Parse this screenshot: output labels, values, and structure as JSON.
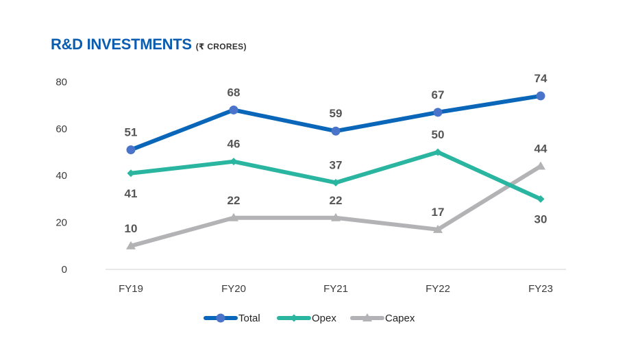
{
  "title": "R&D INVESTMENTS",
  "subtitle": "(₹ CRORES)",
  "chart_data": {
    "type": "line",
    "categories": [
      "FY19",
      "FY20",
      "FY21",
      "FY22",
      "FY23"
    ],
    "ylim": [
      0,
      80
    ],
    "yticks": [
      0,
      20,
      40,
      60,
      80
    ],
    "grid": false,
    "legend_position": "bottom",
    "series": [
      {
        "name": "Total",
        "values": [
          51,
          68,
          59,
          67,
          74
        ],
        "color": "#0a66b8",
        "marker": "circle",
        "labels": [
          "51",
          "68",
          "59",
          "67",
          "74"
        ],
        "label_side": "above"
      },
      {
        "name": "Opex",
        "values": [
          41,
          46,
          37,
          50,
          30
        ],
        "color": "#2ab5a0",
        "marker": "diamond",
        "labels": [
          "41",
          "46",
          "37",
          "50",
          "30"
        ],
        "label_side": "mixed"
      },
      {
        "name": "Capex",
        "values": [
          10,
          22,
          22,
          17,
          44
        ],
        "color": "#b3b3b6",
        "marker": "triangle",
        "labels": [
          "10",
          "22",
          "22",
          "17",
          "44"
        ],
        "label_side": "above"
      }
    ]
  }
}
